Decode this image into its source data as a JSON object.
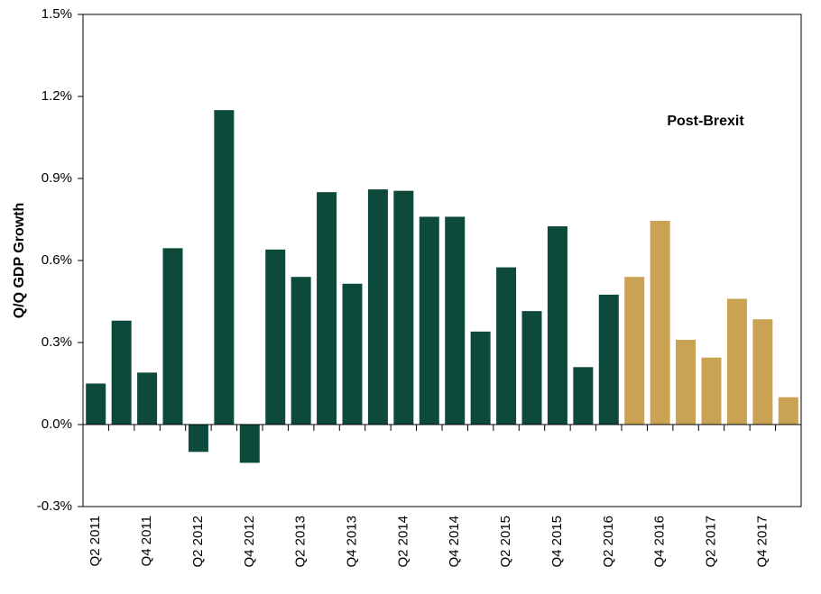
{
  "chart_data": {
    "type": "bar",
    "y_label": "Q/Q GDP Growth",
    "annotation": "Post-Brexit",
    "categories": [
      "Q2 2011",
      null,
      "Q4 2011",
      null,
      "Q2 2012",
      null,
      "Q4 2012",
      null,
      "Q2 2013",
      null,
      "Q4 2013",
      null,
      "Q2 2014",
      null,
      "Q4 2014",
      null,
      "Q2 2015",
      null,
      "Q4 2015",
      null,
      "Q2 2016",
      null,
      "Q4 2016",
      null,
      "Q2 2017",
      null,
      "Q4 2017",
      null
    ],
    "values": [
      0.15,
      0.38,
      0.19,
      0.645,
      -0.1,
      1.15,
      -0.14,
      0.64,
      0.54,
      0.85,
      0.515,
      0.86,
      0.855,
      0.76,
      0.76,
      0.34,
      0.575,
      0.415,
      0.725,
      0.21,
      0.475,
      0.54,
      0.745,
      0.31,
      0.245,
      0.46,
      0.385,
      0.1
    ],
    "colors": [
      "#0d4a3c",
      "#0d4a3c",
      "#0d4a3c",
      "#0d4a3c",
      "#0d4a3c",
      "#0d4a3c",
      "#0d4a3c",
      "#0d4a3c",
      "#0d4a3c",
      "#0d4a3c",
      "#0d4a3c",
      "#0d4a3c",
      "#0d4a3c",
      "#0d4a3c",
      "#0d4a3c",
      "#0d4a3c",
      "#0d4a3c",
      "#0d4a3c",
      "#0d4a3c",
      "#0d4a3c",
      "#0d4a3c",
      "#c9a253",
      "#c9a253",
      "#c9a253",
      "#c9a253",
      "#c9a253",
      "#c9a253",
      "#c9a253"
    ],
    "ylim": [
      -0.3,
      1.5
    ],
    "yticks": [
      {
        "value": -0.3,
        "label": "-0.3%"
      },
      {
        "value": 0,
        "label": "0.0%"
      },
      {
        "value": 0.3,
        "label": "0.3%"
      },
      {
        "value": 0.6,
        "label": "0.6%"
      },
      {
        "value": 0.9,
        "label": "0.9%"
      },
      {
        "value": 1.2,
        "label": "1.2%"
      },
      {
        "value": 1.5,
        "label": "1.5%"
      }
    ],
    "grid": false
  }
}
